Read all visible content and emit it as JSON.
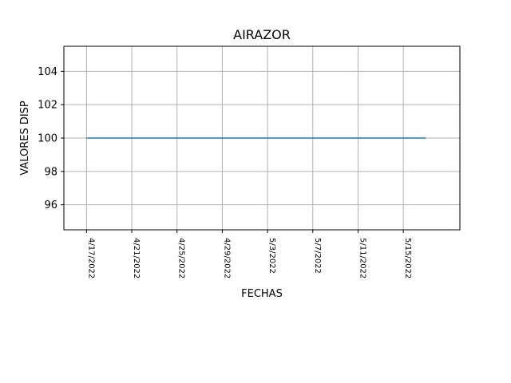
{
  "chart_data": {
    "type": "line",
    "title": "AIRAZOR",
    "xlabel": "FECHAS",
    "ylabel": "VALORES DISP",
    "grid": true,
    "x_ticks": [
      "4/17/2022",
      "4/21/2022",
      "4/25/2022",
      "4/29/2022",
      "5/3/2022",
      "5/7/2022",
      "5/11/2022",
      "5/15/2022"
    ],
    "y_ticks": [
      96,
      98,
      100,
      102,
      104
    ],
    "xlim": [
      "2022-04-15",
      "2022-05-20"
    ],
    "ylim": [
      94.5,
      105.5
    ],
    "series": [
      {
        "color": "#1f77b4",
        "x": [
          "2022-04-17",
          "2022-05-17"
        ],
        "y": [
          100,
          100
        ]
      }
    ]
  }
}
